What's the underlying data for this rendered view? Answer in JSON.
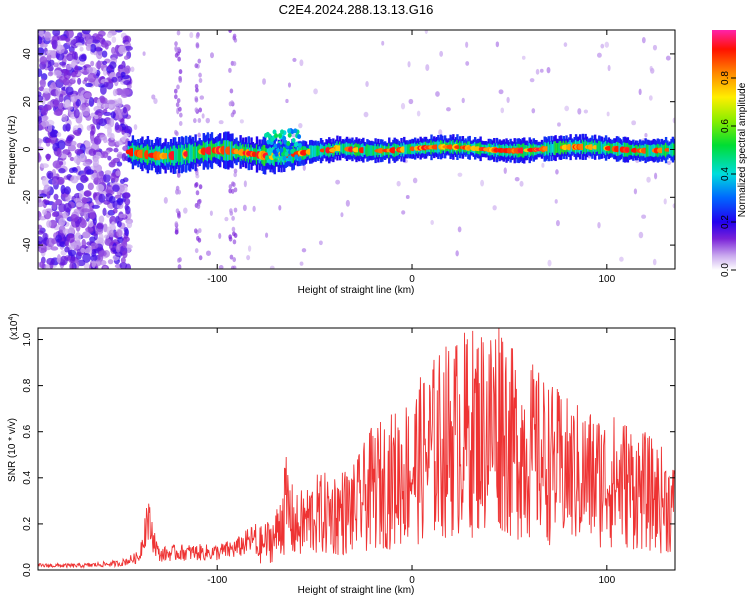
{
  "title": "C2E4.2024.288.13.13.G16",
  "chart_data": [
    {
      "type": "heatmap",
      "xlabel": "Height of straight line (km)",
      "ylabel": "Frequency (Hz)",
      "xlim": [
        -192,
        135
      ],
      "ylim": [
        -50,
        50
      ],
      "xticks": [
        -100,
        0,
        100
      ],
      "yticks": [
        -40,
        -20,
        0,
        20,
        40
      ],
      "colorbar": {
        "label": "Normalized spectral amplitude",
        "range": [
          0,
          1
        ],
        "ticks": [
          "0.0",
          "0.2",
          "0.4",
          "0.6",
          "0.8"
        ]
      }
    },
    {
      "type": "line",
      "xlabel": "Height of straight line (km)",
      "ylabel": "SNR (10 * v/v)",
      "scale_label": "(x10",
      "scale_exp": "4",
      "scale_close": ")",
      "xlim": [
        -192,
        135
      ],
      "ylim": [
        0,
        1.05
      ],
      "xticks": [
        -100,
        0,
        100
      ],
      "yticks": [
        "0.0",
        "0.2",
        "0.4",
        "0.6",
        "0.8",
        "1.0"
      ],
      "series": [
        {
          "color": "#ee3333",
          "x": [
            -192,
            -170,
            -150,
            -140,
            -136,
            -130,
            -120,
            -110,
            -100,
            -90,
            -80,
            -70,
            -65,
            -60,
            -50,
            -40,
            -30,
            -20,
            -10,
            0,
            10,
            20,
            30,
            40,
            46,
            50,
            60,
            70,
            80,
            90,
            100,
            110,
            120,
            130,
            135
          ],
          "y": [
            0.02,
            0.02,
            0.03,
            0.06,
            0.24,
            0.07,
            0.08,
            0.08,
            0.08,
            0.1,
            0.15,
            0.22,
            0.44,
            0.28,
            0.36,
            0.38,
            0.4,
            0.55,
            0.6,
            0.68,
            0.8,
            0.88,
            0.92,
            0.95,
            1.05,
            0.85,
            0.8,
            0.72,
            0.65,
            0.62,
            0.6,
            0.58,
            0.52,
            0.46,
            0.4
          ]
        }
      ]
    }
  ]
}
